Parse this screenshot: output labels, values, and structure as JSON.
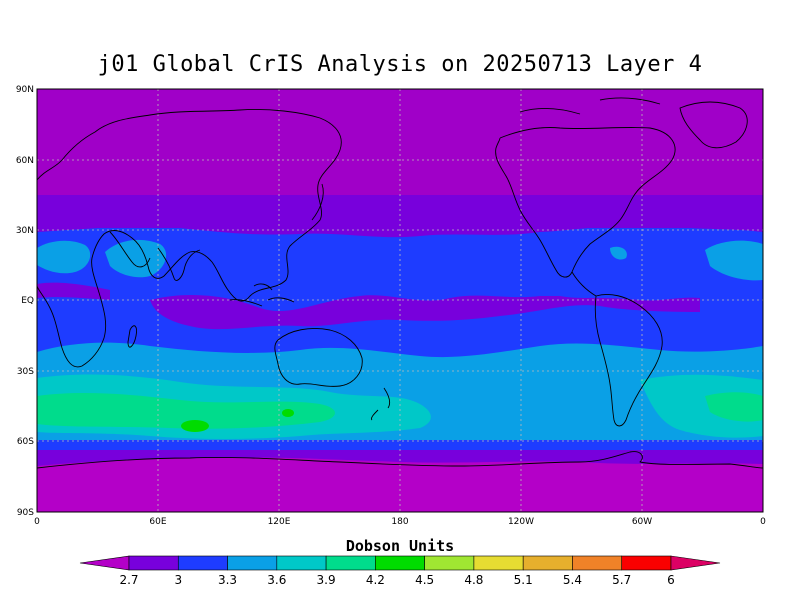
{
  "title": "j01 Global CrIS Analysis on 20250713 Layer 4",
  "colorbar_title": "Dobson Units",
  "lat_labels": [
    "90N",
    "60N",
    "30N",
    "EQ",
    "30S",
    "60S",
    "90S"
  ],
  "lon_labels": [
    "0",
    "60E",
    "120E",
    "180",
    "120W",
    "60W",
    "0"
  ],
  "colorbar": {
    "levels": [
      "2.7",
      "3",
      "3.3",
      "3.6",
      "3.9",
      "4.2",
      "4.5",
      "4.8",
      "5.1",
      "5.4",
      "5.7",
      "6"
    ],
    "colors": [
      "#b400c8",
      "#7800dc",
      "#1e3cff",
      "#0aa0e6",
      "#00c8c8",
      "#00dc8c",
      "#00dc00",
      "#a0e632",
      "#e6dc32",
      "#e6af2d",
      "#f08228",
      "#fa0000",
      "#dc0064"
    ]
  },
  "colors": {
    "band_polar": "#a000c8",
    "band_30_45": "#7800dc",
    "band_tropics": "#1e3cff",
    "band_equator": "#7800dc",
    "band_south_mid": "#0aa0e6",
    "band_south_core": "#00c8c8",
    "band_south_peak": "#00dc8c",
    "band_60s": "#7800dc",
    "antarctic": "#b400c8"
  },
  "chart_data": {
    "type": "heatmap",
    "title": "j01 Global CrIS Analysis on 20250713 Layer 4",
    "x_range": [
      0,
      360
    ],
    "y_range": [
      -90,
      90
    ],
    "units": "Dobson Units",
    "zonal_bands": [
      {
        "lat": [
          60,
          90
        ],
        "value": 2.7
      },
      {
        "lat": [
          45,
          60
        ],
        "value": 2.7
      },
      {
        "lat": [
          30,
          45
        ],
        "value": 3.0
      },
      {
        "lat": [
          5,
          30
        ],
        "value": 3.3
      },
      {
        "lat": [
          -5,
          5
        ],
        "value": 3.0
      },
      {
        "lat": [
          -25,
          -5
        ],
        "value": 3.3
      },
      {
        "lat": [
          -35,
          -25
        ],
        "value": 3.6
      },
      {
        "lat": [
          -50,
          -35
        ],
        "value": 3.9
      },
      {
        "lat": [
          -60,
          -50
        ],
        "value": 3.6
      },
      {
        "lat": [
          -70,
          -60
        ],
        "value": 3.0
      },
      {
        "lat": [
          -90,
          -70
        ],
        "value": 2.7
      }
    ],
    "maxima": [
      {
        "lon": 75,
        "lat": -52,
        "value": 4.2
      },
      {
        "lon": 115,
        "lat": -50,
        "value": 4.2
      }
    ]
  }
}
